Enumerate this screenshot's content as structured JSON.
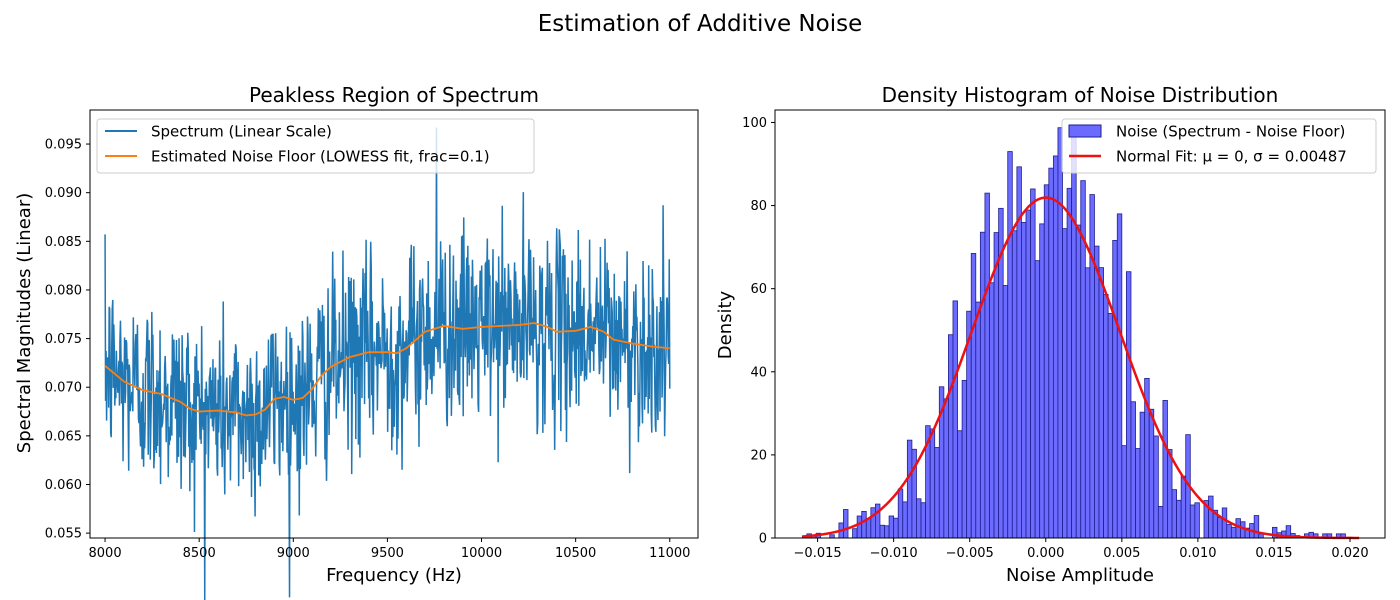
{
  "figure_title": "Estimation of Additive Noise",
  "colors": {
    "spectrum": "#1f77b4",
    "noise_floor": "#ff7f0e",
    "hist_fill": "#6b6bff",
    "hist_edge": "#1f1f8f",
    "normal_fit": "#ee1111"
  },
  "chart_data": [
    {
      "type": "line",
      "title": "Peakless Region of Spectrum",
      "xlabel": "Frequency (Hz)",
      "ylabel": "Spectral Magnitudes (Linear)",
      "xlim": [
        7920,
        11150
      ],
      "ylim": [
        0.0545,
        0.0985
      ],
      "xticks": [
        8000,
        8500,
        9000,
        9500,
        10000,
        10500,
        11000
      ],
      "yticks": [
        0.055,
        0.06,
        0.065,
        0.07,
        0.075,
        0.08,
        0.085,
        0.09,
        0.095
      ],
      "ytick_labels": [
        "0.055",
        "0.060",
        "0.065",
        "0.070",
        "0.075",
        "0.080",
        "0.085",
        "0.090",
        "0.095"
      ],
      "legend_position": "upper-left",
      "series": [
        {
          "name": "Spectrum (Linear Scale)",
          "kind": "noisy-line",
          "x_range": [
            8000,
            11000
          ],
          "n_points": 1100,
          "std": 0.00487,
          "spike": {
            "x": 9760,
            "y": 0.0967
          }
        },
        {
          "name": "Estimated Noise Floor (LOWESS fit, frac=0.1)",
          "kind": "line",
          "x": [
            8000,
            8100,
            8200,
            8300,
            8400,
            8450,
            8500,
            8600,
            8700,
            8750,
            8800,
            8850,
            8900,
            8950,
            9000,
            9050,
            9100,
            9150,
            9200,
            9300,
            9400,
            9500,
            9550,
            9600,
            9700,
            9800,
            9900,
            10000,
            10100,
            10200,
            10280,
            10350,
            10400,
            10500,
            10580,
            10650,
            10700,
            10800,
            10900,
            11000
          ],
          "y": [
            0.0722,
            0.0706,
            0.0697,
            0.0693,
            0.0685,
            0.0678,
            0.0675,
            0.0676,
            0.0674,
            0.0671,
            0.0672,
            0.0677,
            0.0688,
            0.069,
            0.0687,
            0.0689,
            0.0698,
            0.0712,
            0.0721,
            0.0731,
            0.0736,
            0.0736,
            0.0735,
            0.074,
            0.0757,
            0.0763,
            0.076,
            0.0762,
            0.0763,
            0.0764,
            0.0766,
            0.0762,
            0.0757,
            0.0758,
            0.0762,
            0.0757,
            0.0749,
            0.0745,
            0.0742,
            0.074
          ]
        }
      ]
    },
    {
      "type": "histogram",
      "title": "Density Histogram of Noise Distribution",
      "xlabel": "Noise Amplitude",
      "ylabel": "Density",
      "xlim": [
        -0.0178,
        0.0223
      ],
      "ylim": [
        0,
        103
      ],
      "xticks": [
        -0.015,
        -0.01,
        -0.005,
        0.0,
        0.005,
        0.01,
        0.015,
        0.02
      ],
      "xtick_labels": [
        "−0.015",
        "−0.010",
        "−0.005",
        "0.000",
        "0.005",
        "0.010",
        "0.015",
        "0.020"
      ],
      "yticks": [
        0,
        20,
        40,
        60,
        80,
        100
      ],
      "legend_position": "upper-right",
      "bin_range": [
        -0.016,
        0.0206
      ],
      "bins": 122,
      "normal_fit_mu": 0,
      "normal_fit_sigma": 0.00487,
      "series": [
        {
          "name": "Noise (Spectrum - Noise Floor)",
          "kind": "bars"
        },
        {
          "name": "Normal Fit: μ = 0, σ = 0.00487",
          "kind": "pdf-line"
        }
      ],
      "peak_bars": [
        {
          "x": -0.0022,
          "value": 93
        },
        {
          "x": 0.0,
          "value": 85
        },
        {
          "x": 0.002,
          "value": 98
        },
        {
          "x": -0.0038,
          "value": 83
        },
        {
          "x": 0.005,
          "value": 78
        }
      ]
    }
  ]
}
